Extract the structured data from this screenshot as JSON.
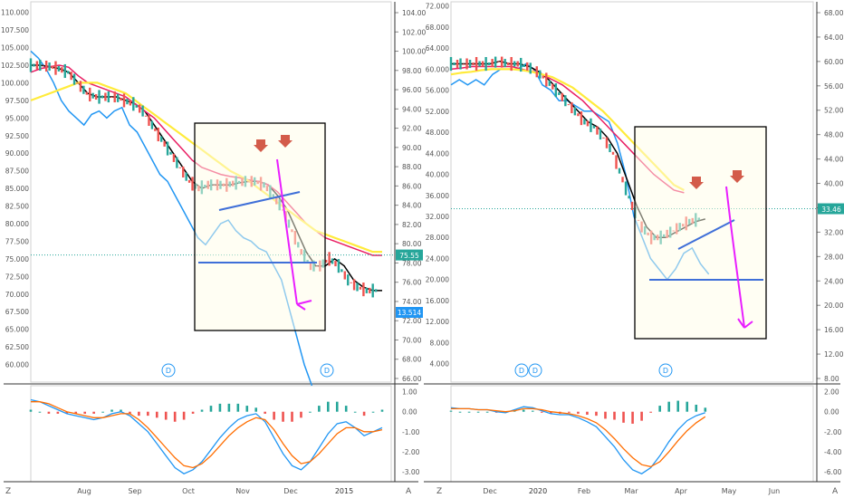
{
  "chart_data": [
    {
      "type": "line",
      "panel": "left",
      "y_left": {
        "range": [
          57.5,
          111.5
        ],
        "ticks": [
          "110.000",
          "107.500",
          "105.000",
          "102.500",
          "100.000",
          "97.500",
          "95.000",
          "92.500",
          "90.000",
          "87.500",
          "85.000",
          "82.500",
          "80.000",
          "77.500",
          "75.000",
          "72.500",
          "70.000",
          "67.500",
          "65.000",
          "62.500",
          "60.000"
        ]
      },
      "y_right": {
        "ticks": [
          "104.00",
          "102.00",
          "100.00",
          "98.00",
          "96.00",
          "94.00",
          "92.00",
          "90.00",
          "88.00",
          "86.00",
          "84.00",
          "82.00",
          "80.00",
          "78.00",
          "76.00",
          "74.00",
          "72.00",
          "70.00",
          "68.00",
          "66.00"
        ]
      },
      "x_ticks": [
        "Aug",
        "Sep",
        "Oct",
        "Nov",
        "Dec",
        "2015"
      ],
      "last_price_label": "75.55",
      "last_price": 75.55,
      "secondary_label": "13.514",
      "event_markers": [
        "D",
        "D"
      ],
      "series": [
        {
          "color": "#2196f3",
          "values": [
            104.5,
            103.5,
            102,
            100,
            97.5,
            96,
            95,
            94,
            95.5,
            96,
            95,
            96,
            96.5,
            94,
            93,
            91,
            89,
            87,
            86,
            84,
            82,
            80,
            78,
            77,
            78.5,
            80,
            80.5,
            79,
            78,
            77.5,
            76.5,
            76,
            74,
            72,
            68,
            64,
            60,
            57
          ]
        },
        {
          "color": "#000000",
          "values": [
            102.5,
            102.5,
            102.3,
            102,
            101.5,
            100,
            98.5,
            98,
            98,
            98,
            97.5,
            97,
            96,
            94,
            92,
            90,
            88,
            86,
            85,
            85.5,
            85.5,
            85.5,
            85.8,
            86,
            86,
            85.5,
            84,
            82,
            79,
            76,
            74,
            74,
            75,
            74,
            72,
            71,
            70.5,
            70.5
          ]
        },
        {
          "color": "#e91e63",
          "values": [
            101.5,
            102,
            102.3,
            102.5,
            102.2,
            101,
            100,
            99.5,
            99,
            98.5,
            98,
            97,
            96,
            95,
            93.5,
            92,
            90.5,
            89,
            88,
            87.5,
            87,
            86.7,
            86.5,
            86.2,
            86,
            85.5,
            84.5,
            83,
            81.5,
            80,
            79,
            78,
            77.5,
            77,
            76.5,
            76,
            75.5,
            75.5
          ]
        },
        {
          "color": "#ffeb3b",
          "values": [
            97.5,
            98,
            98.5,
            99,
            99.5,
            100,
            100,
            100,
            99.5,
            99,
            98.5,
            97.5,
            96.5,
            95.5,
            94.5,
            93.5,
            92.5,
            91.5,
            90.5,
            89.5,
            88.5,
            87.5,
            86.8,
            86,
            85,
            84,
            83,
            82,
            81,
            80,
            79,
            78.5,
            78,
            77.5,
            77,
            76.5,
            76,
            76
          ]
        }
      ],
      "macd": {
        "range": [
          -3.5,
          1.3
        ],
        "ticks": [
          "1.00",
          "0.00",
          "-1.00",
          "-2.00",
          "-3.00"
        ],
        "line": [
          0.6,
          0.5,
          0.3,
          0.1,
          -0.1,
          -0.2,
          -0.3,
          -0.4,
          -0.3,
          -0.1,
          0.0,
          -0.2,
          -0.6,
          -1.0,
          -1.6,
          -2.2,
          -2.8,
          -3.1,
          -2.9,
          -2.5,
          -1.9,
          -1.3,
          -0.8,
          -0.4,
          -0.2,
          -0.1,
          -0.5,
          -1.3,
          -2.1,
          -2.7,
          -2.9,
          -2.5,
          -1.8,
          -1.1,
          -0.6,
          -0.5,
          -0.8,
          -1.2,
          -1.0,
          -0.8
        ],
        "signal": [
          0.5,
          0.5,
          0.4,
          0.2,
          0.0,
          -0.1,
          -0.2,
          -0.3,
          -0.3,
          -0.2,
          -0.1,
          -0.1,
          -0.4,
          -0.8,
          -1.3,
          -1.8,
          -2.3,
          -2.7,
          -2.8,
          -2.6,
          -2.2,
          -1.7,
          -1.2,
          -0.8,
          -0.5,
          -0.3,
          -0.4,
          -0.9,
          -1.6,
          -2.2,
          -2.6,
          -2.5,
          -2.1,
          -1.6,
          -1.1,
          -0.8,
          -0.8,
          -1.0,
          -1.0,
          -0.9
        ]
      }
    },
    {
      "type": "line",
      "panel": "right",
      "y_left": {
        "range": [
          0.5,
          72.8
        ],
        "ticks": [
          "72.000",
          "68.000",
          "64.000",
          "60.000",
          "56.000",
          "52.000",
          "48.000",
          "44.000",
          "40.000",
          "36.000",
          "32.000",
          "28.000",
          "24.000",
          "20.000",
          "16.000",
          "12.000",
          "8.000",
          "4.000"
        ]
      },
      "y_right": {
        "ticks": [
          "68.00",
          "64.00",
          "60.00",
          "56.00",
          "52.00",
          "48.00",
          "44.00",
          "40.00",
          "36.00",
          "32.00",
          "28.00",
          "24.00",
          "20.00",
          "16.00",
          "12.00",
          "8.00"
        ]
      },
      "x_ticks": [
        "Dec",
        "2020",
        "Feb",
        "Mar",
        "Apr",
        "May",
        "Jun"
      ],
      "last_price_label": "33.46",
      "last_price": 33.46,
      "event_markers": [
        "D",
        "D",
        "D"
      ],
      "series": [
        {
          "color": "#2196f3",
          "values": [
            57,
            58,
            57,
            58,
            57,
            59,
            60,
            60,
            60,
            61,
            60,
            57,
            56,
            54,
            54,
            53,
            52,
            52,
            51,
            50,
            46,
            40,
            32,
            28,
            24,
            22,
            20,
            22,
            25,
            26,
            23,
            21
          ]
        },
        {
          "color": "#000000",
          "values": [
            61,
            61,
            61,
            61,
            61,
            61.5,
            61,
            61,
            60.5,
            59.5,
            58,
            56,
            54,
            52,
            50,
            49,
            47,
            44,
            39,
            34,
            30,
            28,
            28,
            29,
            30,
            31,
            31.5
          ]
        },
        {
          "color": "#e91e63",
          "values": [
            60,
            60.2,
            60.5,
            60.5,
            60.5,
            60.5,
            60.5,
            60,
            59.5,
            59,
            58,
            57,
            55.5,
            54,
            52,
            50,
            48,
            46,
            44,
            42,
            40,
            38.5,
            37,
            36.5
          ]
        },
        {
          "color": "#ffeb3b",
          "values": [
            59,
            59.3,
            59.5,
            59.8,
            60,
            60,
            60,
            59.8,
            59.5,
            59,
            58.5,
            57.5,
            56.5,
            55,
            53.5,
            52,
            50,
            48,
            46,
            44,
            42,
            40,
            38,
            37
          ]
        }
      ],
      "macd": {
        "range": [
          -7,
          2.6
        ],
        "ticks": [
          "2.00",
          "0.00",
          "-2.00",
          "-4.00",
          "-6.00"
        ],
        "line": [
          0.4,
          0.3,
          0.3,
          0.2,
          0.2,
          0.0,
          -0.1,
          0.2,
          0.5,
          0.4,
          0.1,
          -0.2,
          -0.3,
          -0.3,
          -0.6,
          -1.0,
          -1.5,
          -2.5,
          -3.5,
          -4.8,
          -5.8,
          -6.2,
          -5.6,
          -4.4,
          -3.0,
          -1.8,
          -0.9,
          -0.4,
          -0.1
        ],
        "signal": [
          0.3,
          0.3,
          0.3,
          0.2,
          0.2,
          0.1,
          0.0,
          0.1,
          0.3,
          0.3,
          0.2,
          0.0,
          -0.1,
          -0.2,
          -0.4,
          -0.7,
          -1.1,
          -1.8,
          -2.7,
          -3.7,
          -4.6,
          -5.3,
          -5.5,
          -5.0,
          -4.0,
          -2.9,
          -1.9,
          -1.1,
          -0.5
        ]
      }
    }
  ],
  "toolbar": {
    "left_corner": "Z",
    "right_corner": "A"
  }
}
